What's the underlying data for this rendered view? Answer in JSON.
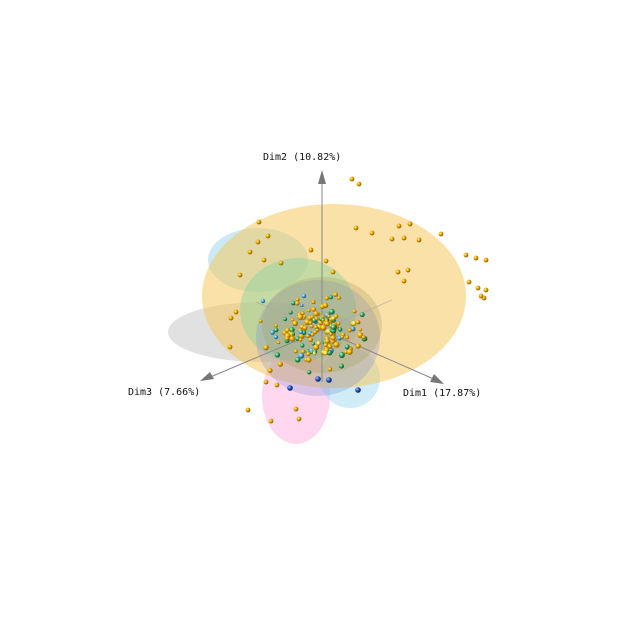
{
  "chart_data": {
    "type": "scatter",
    "projection": "3d",
    "axes": {
      "x_label": "Dim1 (17.87%)",
      "y_label": "Dim2 (10.82%)",
      "z_label": "Dim3 (7.66%)"
    },
    "groups": [
      {
        "color": "#e8a800",
        "ellipsoid_color": "#f5c860"
      },
      {
        "color": "#3cb371",
        "ellipsoid_color": "#88d4a0"
      },
      {
        "color": "#4aa8d8",
        "ellipsoid_color": "#a8dcf0"
      },
      {
        "color": "#1f4fbf",
        "ellipsoid_color": "#8090d8"
      },
      {
        "color": "#f0e040",
        "ellipsoid_color": "#f0e890"
      },
      {
        "color": "#b0b0b0",
        "ellipsoid_color": "#c8c8c8"
      },
      {
        "color": "#ff88cc",
        "ellipsoid_color": "#ffc8e8"
      }
    ],
    "grid": false,
    "legend": "none"
  }
}
